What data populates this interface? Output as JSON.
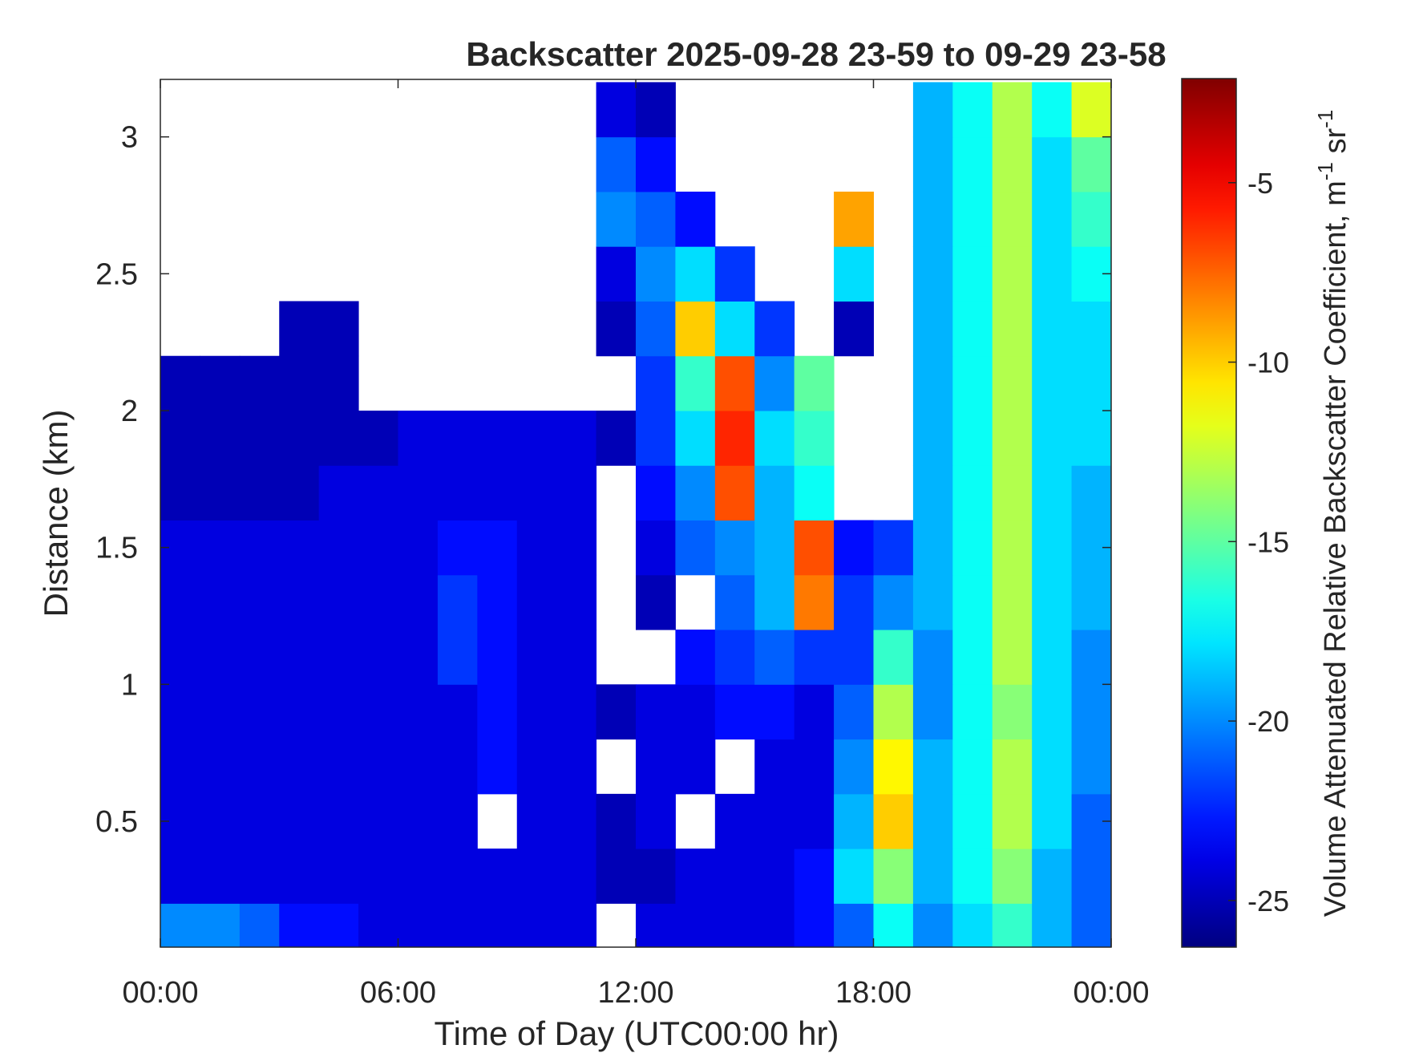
{
  "chart_data": {
    "type": "heatmap",
    "title": "Backscatter 2025-09-28 23-59 to 09-29 23-58",
    "x_label": "Time of Day (UTC00:00 hr)",
    "y_label": "Distance (km)",
    "colorbar_label_parts": [
      "Volume Attenuated Relative Backscatter Coefficient, m",
      "-1",
      " sr",
      "-1"
    ],
    "colormap": "jet",
    "x_edges": [
      0,
      1,
      2,
      3,
      4,
      5,
      6,
      7,
      8,
      9,
      10,
      11,
      12,
      13,
      14,
      15,
      16,
      17,
      18,
      19,
      20,
      21,
      22,
      23,
      24
    ],
    "y_edges": [
      0,
      0.2,
      0.4,
      0.6,
      0.8,
      1.0,
      1.2,
      1.4,
      1.6,
      1.8,
      2.0,
      2.2,
      2.4,
      2.6,
      2.8,
      3.0,
      3.2
    ],
    "z": [
      [
        -20,
        -20,
        -21,
        -23,
        -23,
        -24,
        -24,
        -24,
        -24,
        -24,
        -24,
        null,
        -24,
        -24,
        -24,
        -24,
        -23,
        -21,
        -17,
        -20,
        -18,
        -16,
        -19,
        -21
      ],
      [
        -24,
        -24,
        -24,
        -24,
        -24,
        -24,
        -24,
        -24,
        -24,
        -24,
        -24,
        -25,
        -25,
        -24,
        -24,
        -24,
        -23,
        -18,
        -14,
        -19,
        -17,
        -14,
        -19,
        -21
      ],
      [
        -24,
        -24,
        -24,
        -24,
        -24,
        -24,
        -24,
        -24,
        null,
        -24,
        -24,
        -25,
        -24,
        null,
        -24,
        -24,
        -24,
        -19,
        -10,
        -19,
        -17,
        -13,
        -18,
        -21
      ],
      [
        -24,
        -24,
        -24,
        -24,
        -24,
        -24,
        -24,
        -24,
        -23,
        -24,
        -24,
        null,
        -24,
        -24,
        null,
        -24,
        -24,
        -20,
        -11,
        -19,
        -17,
        -13,
        -18,
        -20
      ],
      [
        -24,
        -24,
        -24,
        -24,
        -24,
        -24,
        -24,
        -24,
        -23,
        -24,
        -24,
        -25,
        -24,
        -24,
        -23,
        -23,
        -24,
        -21,
        -13,
        -20,
        -17,
        -14,
        -18,
        -20
      ],
      [
        -24,
        -24,
        -24,
        -24,
        -24,
        -24,
        -24,
        -22,
        -23,
        -24,
        -24,
        null,
        null,
        -23,
        -22,
        -21,
        -22,
        -22,
        -16,
        -20,
        -17,
        -13,
        -18,
        -20
      ],
      [
        -24,
        -24,
        -24,
        -24,
        -24,
        -24,
        -24,
        -22,
        -23,
        -24,
        -24,
        null,
        -25,
        null,
        -21,
        -19,
        -8,
        -22,
        -20,
        -19,
        -17,
        -13,
        -18,
        -19
      ],
      [
        -24,
        -24,
        -24,
        -24,
        -24,
        -24,
        -24,
        -23,
        -23,
        -24,
        -24,
        null,
        -24,
        -21,
        -20,
        -19,
        -7,
        -23,
        -22,
        -19,
        -17,
        -13,
        -18,
        -19
      ],
      [
        -25,
        -25,
        -25,
        -25,
        -24,
        -24,
        -24,
        -24,
        -24,
        -24,
        -24,
        null,
        -23,
        -20,
        -7,
        -19,
        -17,
        null,
        null,
        -19,
        -17,
        -13,
        -18,
        -19
      ],
      [
        -25,
        -25,
        -25,
        -25,
        -25,
        -25,
        -24,
        -24,
        -24,
        -24,
        -24,
        -25,
        -22,
        -18,
        -6,
        -18,
        -16,
        null,
        null,
        -19,
        -17,
        -13,
        -18,
        -18
      ],
      [
        -25,
        -25,
        -25,
        -25,
        -25,
        null,
        null,
        null,
        null,
        null,
        null,
        null,
        -22,
        -16,
        -7,
        -20,
        -15,
        null,
        null,
        -19,
        -17,
        -13,
        -18,
        -18
      ],
      [
        null,
        null,
        null,
        -25,
        -25,
        null,
        null,
        null,
        null,
        null,
        null,
        -25,
        -21,
        -10,
        -18,
        -22,
        null,
        -25,
        null,
        -19,
        -17,
        -13,
        -18,
        -18
      ],
      [
        null,
        null,
        null,
        null,
        null,
        null,
        null,
        null,
        null,
        null,
        null,
        -24,
        -20,
        -18,
        -22,
        null,
        null,
        -18,
        null,
        -19,
        -17,
        -13,
        -18,
        -17
      ],
      [
        null,
        null,
        null,
        null,
        null,
        null,
        null,
        null,
        null,
        null,
        null,
        -20,
        -21,
        -23,
        null,
        null,
        null,
        -9,
        null,
        -19,
        -17,
        -13,
        -18,
        -16
      ],
      [
        null,
        null,
        null,
        null,
        null,
        null,
        null,
        null,
        null,
        null,
        null,
        -21,
        -23,
        null,
        null,
        null,
        null,
        null,
        null,
        -19,
        -17,
        -13,
        -18,
        -15
      ],
      [
        null,
        null,
        null,
        null,
        null,
        null,
        null,
        null,
        null,
        null,
        null,
        -24,
        -25,
        null,
        null,
        null,
        null,
        null,
        null,
        -19,
        -17,
        -13,
        -17,
        -12
      ]
    ],
    "xlim": [
      0,
      24
    ],
    "xticks": [
      {
        "value": 0,
        "label": "00:00"
      },
      {
        "value": 6,
        "label": "06:00"
      },
      {
        "value": 12,
        "label": "12:00"
      },
      {
        "value": 18,
        "label": "18:00"
      },
      {
        "value": 24,
        "label": "00:00"
      }
    ],
    "ylim": [
      0.04,
      3.21
    ],
    "yticks": [
      0.5,
      1,
      1.5,
      2,
      2.5,
      3
    ],
    "clim": [
      -26.3,
      -2.1
    ],
    "cticks": [
      -25,
      -20,
      -15,
      -10,
      -5
    ]
  }
}
